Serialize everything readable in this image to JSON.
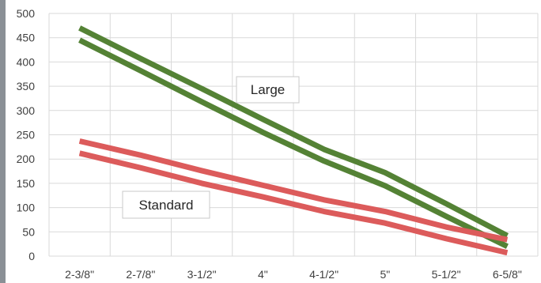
{
  "chart_data": {
    "type": "line",
    "categories": [
      "2-3/8\"",
      "2-7/8\"",
      "3-1/2\"",
      "4\"",
      "4-1/2\"",
      "5\"",
      "5-1/2\"",
      "6-5/8\""
    ],
    "ylim": [
      0,
      500
    ],
    "yticks": [
      0,
      50,
      100,
      150,
      200,
      250,
      300,
      350,
      400,
      450,
      500
    ],
    "grid": true,
    "title": "",
    "xlabel": "",
    "ylabel": "",
    "series": [
      {
        "group": "large",
        "color": "#548235",
        "values": [
          470,
          407,
          345,
          282,
          220,
          172,
          108,
          42
        ]
      },
      {
        "group": "large",
        "color": "#548235",
        "values": [
          445,
          382,
          318,
          255,
          196,
          145,
          82,
          20
        ]
      },
      {
        "group": "standard",
        "color": "#dc5b5b",
        "values": [
          237,
          208,
          176,
          146,
          116,
          92,
          60,
          34
        ]
      },
      {
        "group": "standard",
        "color": "#dc5b5b",
        "values": [
          212,
          182,
          150,
          122,
          92,
          68,
          36,
          7
        ]
      }
    ],
    "annotations": [
      {
        "text": "Large",
        "group": "large"
      },
      {
        "text": "Standard",
        "group": "standard"
      }
    ]
  }
}
